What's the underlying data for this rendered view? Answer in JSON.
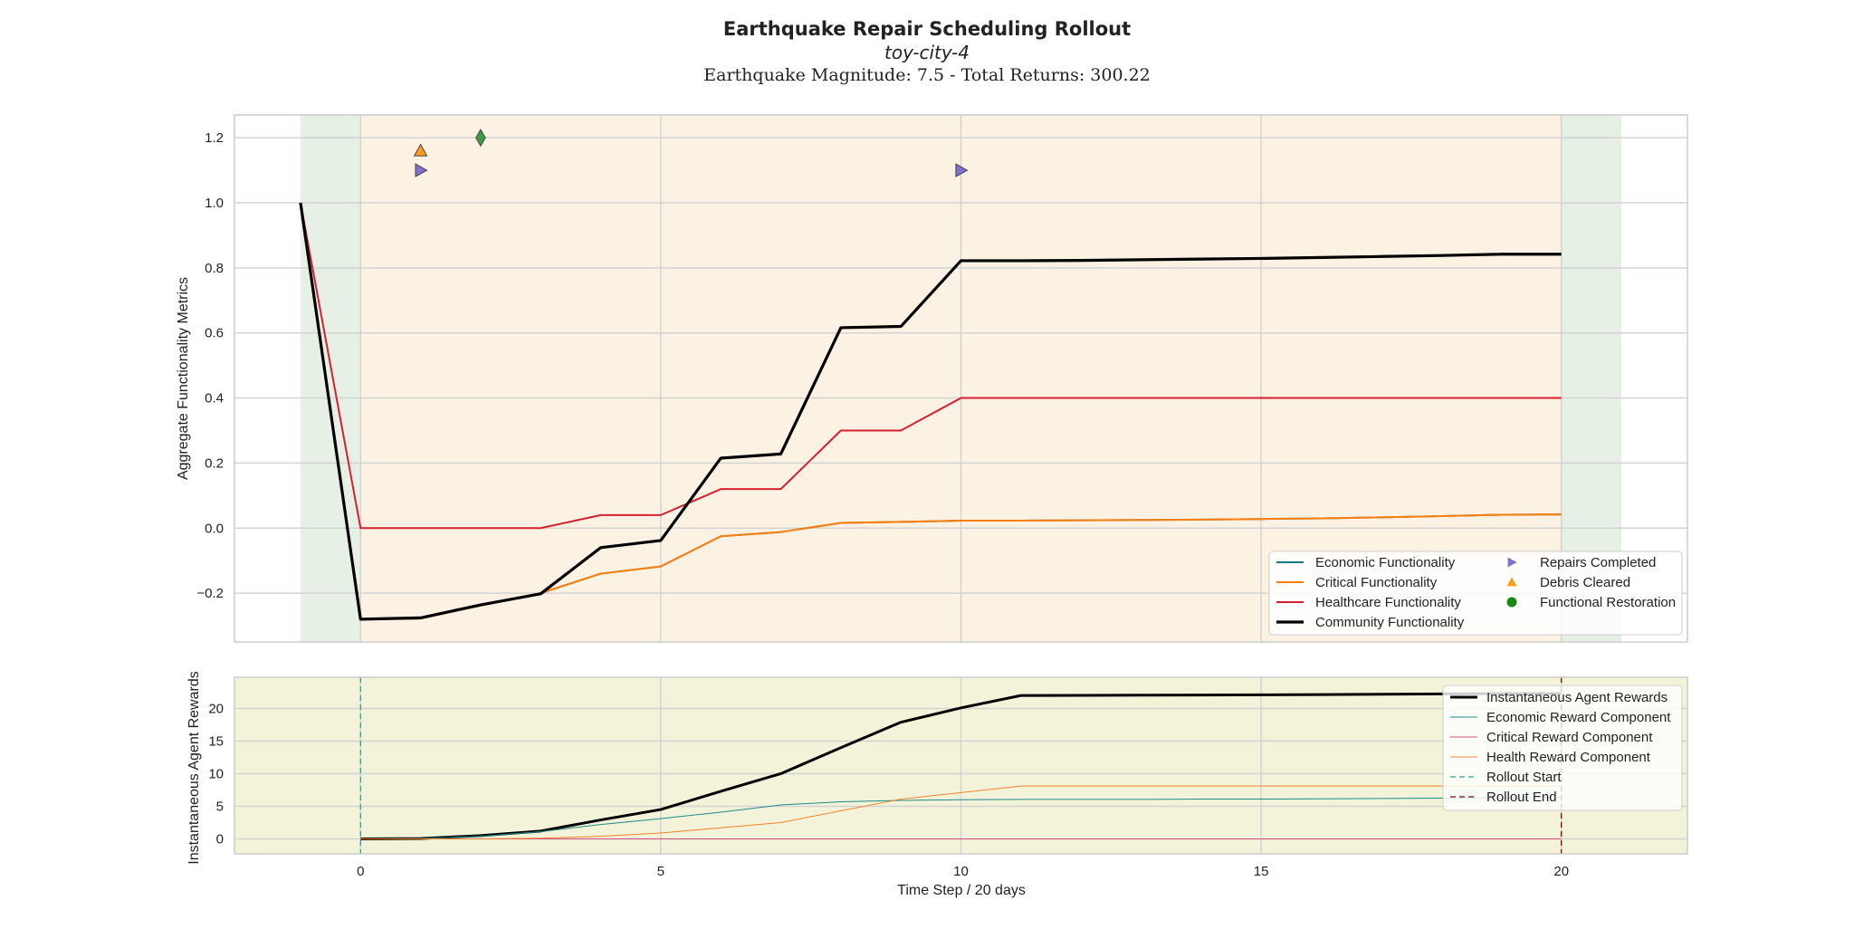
{
  "title": "Earthquake Repair Scheduling Rollout",
  "subtitle_city": "toy-city-4",
  "subtitle_info": "Earthquake Magnitude: 7.5 - Total Returns: 300.22",
  "chart_data": [
    {
      "type": "line",
      "ylabel": "Aggregate Functionality Metrics",
      "xlim": [
        -2.1,
        22.1
      ],
      "ylim": [
        -0.35,
        1.27
      ],
      "x_ticks": [
        0,
        5,
        10,
        15,
        20
      ],
      "y_ticks": [
        -0.2,
        0.0,
        0.2,
        0.4,
        0.6,
        0.8,
        1.0,
        1.2
      ],
      "y_tick_labels": [
        "−0.2",
        "0.0",
        "0.2",
        "0.4",
        "0.6",
        "0.8",
        "1.0",
        "1.2"
      ],
      "grid": true,
      "shaded_regions": [
        {
          "from": -1,
          "to": 0,
          "color": "#e6f0e4"
        },
        {
          "from": 0,
          "to": 20,
          "color": "#fcf2e3"
        },
        {
          "from": 20,
          "to": 21,
          "color": "#e6f0e4"
        }
      ],
      "x": [
        -1,
        0,
        1,
        2,
        3,
        4,
        5,
        6,
        7,
        8,
        9,
        10,
        11,
        12,
        13,
        14,
        15,
        16,
        17,
        18,
        19,
        20
      ],
      "series": [
        {
          "name": "Economic Functionality",
          "color": "#147a7a",
          "width": 2,
          "values": [
            1.0,
            -0.28,
            -0.278,
            -0.238,
            -0.2,
            -0.14,
            -0.118,
            -0.025,
            -0.012,
            0.016,
            0.019,
            0.023,
            0.023,
            0.024,
            0.025,
            0.026,
            0.028,
            0.03,
            0.033,
            0.037,
            0.041,
            0.042
          ]
        },
        {
          "name": "Critical Functionality",
          "color": "#ff7f0e",
          "width": 2,
          "values": [
            1.0,
            -0.28,
            -0.278,
            -0.238,
            -0.2,
            -0.14,
            -0.118,
            -0.025,
            -0.012,
            0.016,
            0.019,
            0.023,
            0.023,
            0.024,
            0.025,
            0.026,
            0.028,
            0.03,
            0.033,
            0.037,
            0.041,
            0.042
          ]
        },
        {
          "name": "Healthcare Functionality",
          "color": "#d62030",
          "width": 2,
          "values": [
            1.0,
            0.0,
            0.0,
            0.0,
            0.0,
            0.04,
            0.04,
            0.12,
            0.12,
            0.3,
            0.3,
            0.4,
            0.4,
            0.4,
            0.4,
            0.4,
            0.4,
            0.4,
            0.4,
            0.4,
            0.4,
            0.4
          ]
        },
        {
          "name": "Community Functionality",
          "color": "#000000",
          "width": 3.2,
          "values": [
            1.0,
            -0.28,
            -0.276,
            -0.236,
            -0.202,
            -0.06,
            -0.038,
            0.215,
            0.228,
            0.616,
            0.62,
            0.822,
            0.822,
            0.823,
            0.825,
            0.827,
            0.829,
            0.832,
            0.835,
            0.838,
            0.842,
            0.842
          ]
        }
      ],
      "markers": [
        {
          "name": "Repairs Completed",
          "symbol": "triangle-right",
          "color": "#7f6fd0",
          "points": [
            [
              1,
              1.1
            ],
            [
              10,
              1.1
            ]
          ]
        },
        {
          "name": "Debris Cleared",
          "symbol": "triangle-up",
          "color": "#ff9a1a",
          "points": [
            [
              1,
              1.16
            ]
          ]
        },
        {
          "name": "Functional Restoration",
          "symbol": "diamond",
          "color": "#3f9b3f",
          "legend_symbol": "circle",
          "legend_color": "#138a13",
          "points": [
            [
              2,
              1.2
            ]
          ]
        }
      ],
      "legend": {
        "placement": "lower right",
        "columns": [
          [
            "Economic Functionality",
            "Critical Functionality",
            "Healthcare Functionality",
            "Community Functionality"
          ],
          [
            "Repairs Completed",
            "Debris Cleared",
            "Functional Restoration"
          ]
        ]
      }
    },
    {
      "type": "line",
      "xlabel": "Time Step / 20 days",
      "ylabel": "Instantaneous Agent Rewards",
      "xlim": [
        -2.1,
        22.1
      ],
      "ylim": [
        -2.3,
        24.8
      ],
      "x_ticks": [
        0,
        5,
        10,
        15,
        20
      ],
      "y_ticks": [
        0,
        5,
        10,
        15,
        20
      ],
      "grid": true,
      "background": "#f3f3da",
      "x": [
        0,
        1,
        2,
        3,
        4,
        5,
        6,
        7,
        8,
        9,
        10,
        11,
        12,
        13,
        14,
        15,
        16,
        17,
        18,
        19,
        20
      ],
      "series": [
        {
          "name": "Instantaneous Agent Rewards",
          "color": "#000000",
          "width": 3,
          "values": [
            0.0,
            0.05,
            0.5,
            1.2,
            2.9,
            4.5,
            7.3,
            10.0,
            14.0,
            17.9,
            20.1,
            22.0,
            22.02,
            22.05,
            22.08,
            22.1,
            22.15,
            22.2,
            22.25,
            22.3,
            22.3
          ]
        },
        {
          "name": "Economic Reward Component",
          "color": "#1f8a8a",
          "width": 1,
          "values": [
            0.0,
            0.05,
            0.4,
            1.1,
            2.2,
            3.1,
            4.1,
            5.2,
            5.7,
            5.9,
            6.0,
            6.05,
            6.05,
            6.05,
            6.1,
            6.1,
            6.15,
            6.2,
            6.25,
            6.3,
            6.35
          ]
        },
        {
          "name": "Critical Reward Component",
          "color": "#d05080",
          "width": 1,
          "values": [
            0.0,
            0.0,
            0.0,
            0.0,
            0.0,
            0.0,
            0.0,
            0.0,
            0.0,
            0.0,
            0.0,
            0.0,
            0.0,
            0.0,
            0.0,
            0.0,
            0.0,
            0.0,
            0.0,
            0.0,
            0.0
          ]
        },
        {
          "name": "Health Reward Component",
          "color": "#f5822a",
          "width": 1,
          "values": [
            0.0,
            0.0,
            0.0,
            0.1,
            0.4,
            0.9,
            1.7,
            2.5,
            4.3,
            6.1,
            7.1,
            8.1,
            8.1,
            8.1,
            8.1,
            8.1,
            8.1,
            8.1,
            8.1,
            8.1,
            8.1
          ]
        }
      ],
      "vlines": [
        {
          "name": "Rollout Start",
          "x": 0,
          "color": "#2aa198",
          "dash": "6,4"
        },
        {
          "name": "Rollout End",
          "x": 20,
          "color": "#8b0000",
          "dash": "6,4"
        }
      ],
      "legend": {
        "placement": "upper right",
        "entries": [
          "Instantaneous Agent Rewards",
          "Economic Reward Component",
          "Critical Reward Component",
          "Health Reward Component",
          "Rollout Start",
          "Rollout End"
        ]
      }
    }
  ]
}
